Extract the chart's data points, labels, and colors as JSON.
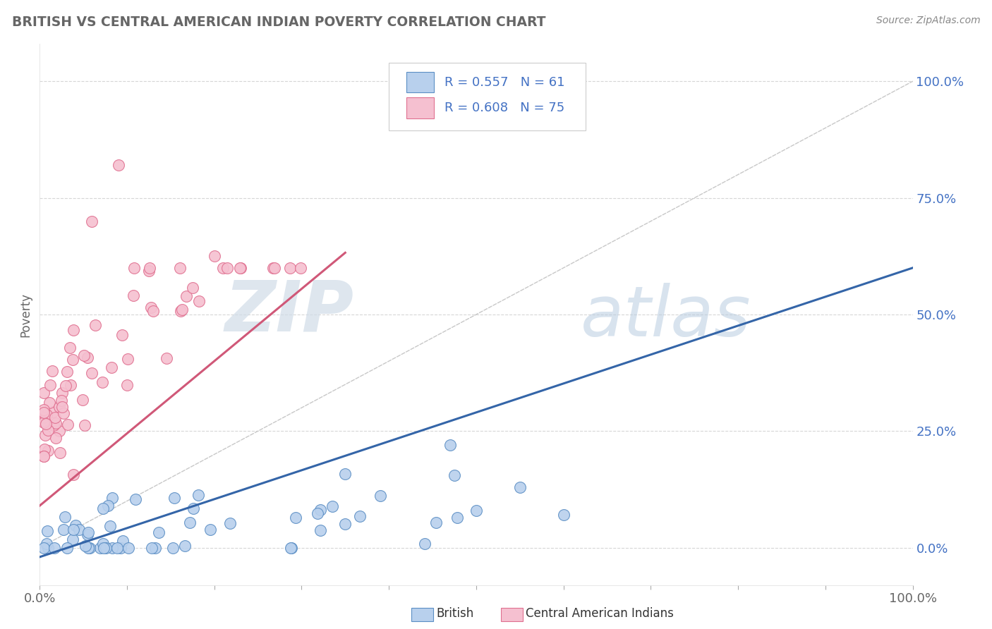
{
  "title": "BRITISH VS CENTRAL AMERICAN INDIAN POVERTY CORRELATION CHART",
  "source_text": "Source: ZipAtlas.com",
  "ylabel": "Poverty",
  "xlim": [
    0,
    1
  ],
  "ylim": [
    -0.08,
    1.08
  ],
  "ytick_labels": [
    "0.0%",
    "25.0%",
    "50.0%",
    "75.0%",
    "100.0%"
  ],
  "ytick_values": [
    0.0,
    0.25,
    0.5,
    0.75,
    1.0
  ],
  "xtick_labels": [
    "0.0%",
    "100.0%"
  ],
  "xtick_values": [
    0.0,
    1.0
  ],
  "british_color": "#b8d0ed",
  "british_edge_color": "#5b8ec4",
  "pink_color": "#f5c0d0",
  "pink_edge_color": "#e07090",
  "line_blue": "#3465a8",
  "line_pink": "#d05878",
  "diag_color": "#c8c8c8",
  "R_british": 0.557,
  "N_british": 61,
  "R_pink": 0.608,
  "N_pink": 75,
  "legend_label_british": "British",
  "legend_label_pink": "Central American Indians",
  "watermark_zip": "ZIP",
  "watermark_atlas": "atlas",
  "background_color": "#ffffff",
  "grid_color": "#cccccc",
  "title_color": "#666666",
  "source_color": "#888888",
  "tick_color_y": "#4472c4",
  "tick_color_x": "#666666",
  "ylabel_color": "#666666",
  "legend_text_color": "#4472c4"
}
